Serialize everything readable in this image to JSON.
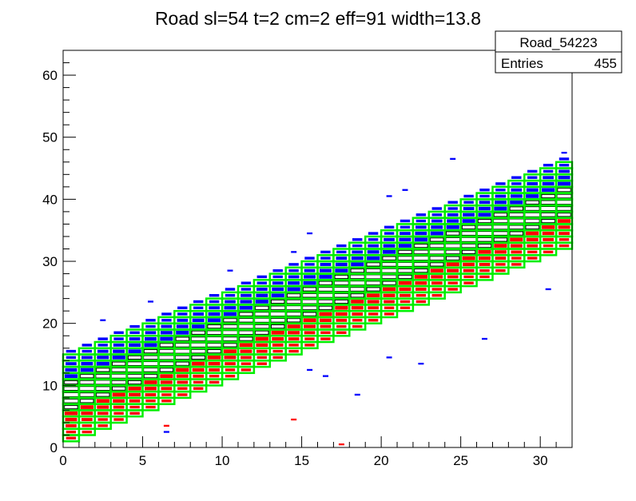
{
  "chart_data": {
    "type": "heatmap",
    "title": "Road sl=54 t=2 cm=2 eff=91 width=13.8",
    "xlabel": "",
    "ylabel": "",
    "xlim": [
      0,
      32
    ],
    "ylim": [
      0,
      64
    ],
    "x_ticks": [
      "0",
      "5",
      "10",
      "15",
      "20",
      "25",
      "30"
    ],
    "y_ticks": [
      "0",
      "10",
      "20",
      "30",
      "40",
      "50",
      "60"
    ],
    "grid": false,
    "stats_box": {
      "name": "Road_54223",
      "entries_label": "Entries",
      "entries_value": "455"
    },
    "road": {
      "color": "#00ee00",
      "description": "stacked cell windows per column, lower edge y_low(x) = 1 + 1.0*x, window height 14",
      "y_low_start": 1,
      "slope": 1.0,
      "width": 14
    },
    "band": {
      "center_start": 8.5,
      "slope": 1.0,
      "upper_color": "#0000ff",
      "middle_color": "#ffffff",
      "lower_color": "#ff0000",
      "outline_color": "#000000"
    },
    "outliers": [
      {
        "x": 2.5,
        "y": 20.5,
        "color": "blue"
      },
      {
        "x": 6.5,
        "y": 3.5,
        "color": "red"
      },
      {
        "x": 6.5,
        "y": 2.5,
        "color": "blue"
      },
      {
        "x": 14.5,
        "y": 4.5,
        "color": "red"
      },
      {
        "x": 17.5,
        "y": 0.5,
        "color": "red"
      },
      {
        "x": 15.5,
        "y": 12.5,
        "color": "blue"
      },
      {
        "x": 18.5,
        "y": 8.5,
        "color": "blue"
      },
      {
        "x": 16.5,
        "y": 11.5,
        "color": "blue"
      },
      {
        "x": 20.5,
        "y": 14.5,
        "color": "blue"
      },
      {
        "x": 22.5,
        "y": 13.5,
        "color": "blue"
      },
      {
        "x": 20.5,
        "y": 40.5,
        "color": "blue"
      },
      {
        "x": 21.5,
        "y": 41.5,
        "color": "blue"
      },
      {
        "x": 24.5,
        "y": 46.5,
        "color": "blue"
      },
      {
        "x": 26.5,
        "y": 17.5,
        "color": "blue"
      },
      {
        "x": 30.5,
        "y": 25.5,
        "color": "blue"
      },
      {
        "x": 31.5,
        "y": 47.5,
        "color": "blue"
      },
      {
        "x": 10.5,
        "y": 28.5,
        "color": "blue"
      },
      {
        "x": 11.5,
        "y": 26.5,
        "color": "blue"
      },
      {
        "x": 14.5,
        "y": 31.5,
        "color": "blue"
      },
      {
        "x": 15.5,
        "y": 34.5,
        "color": "blue"
      },
      {
        "x": 9.5,
        "y": 23.5,
        "color": "blue"
      },
      {
        "x": 5.5,
        "y": 23.5,
        "color": "blue"
      }
    ]
  }
}
